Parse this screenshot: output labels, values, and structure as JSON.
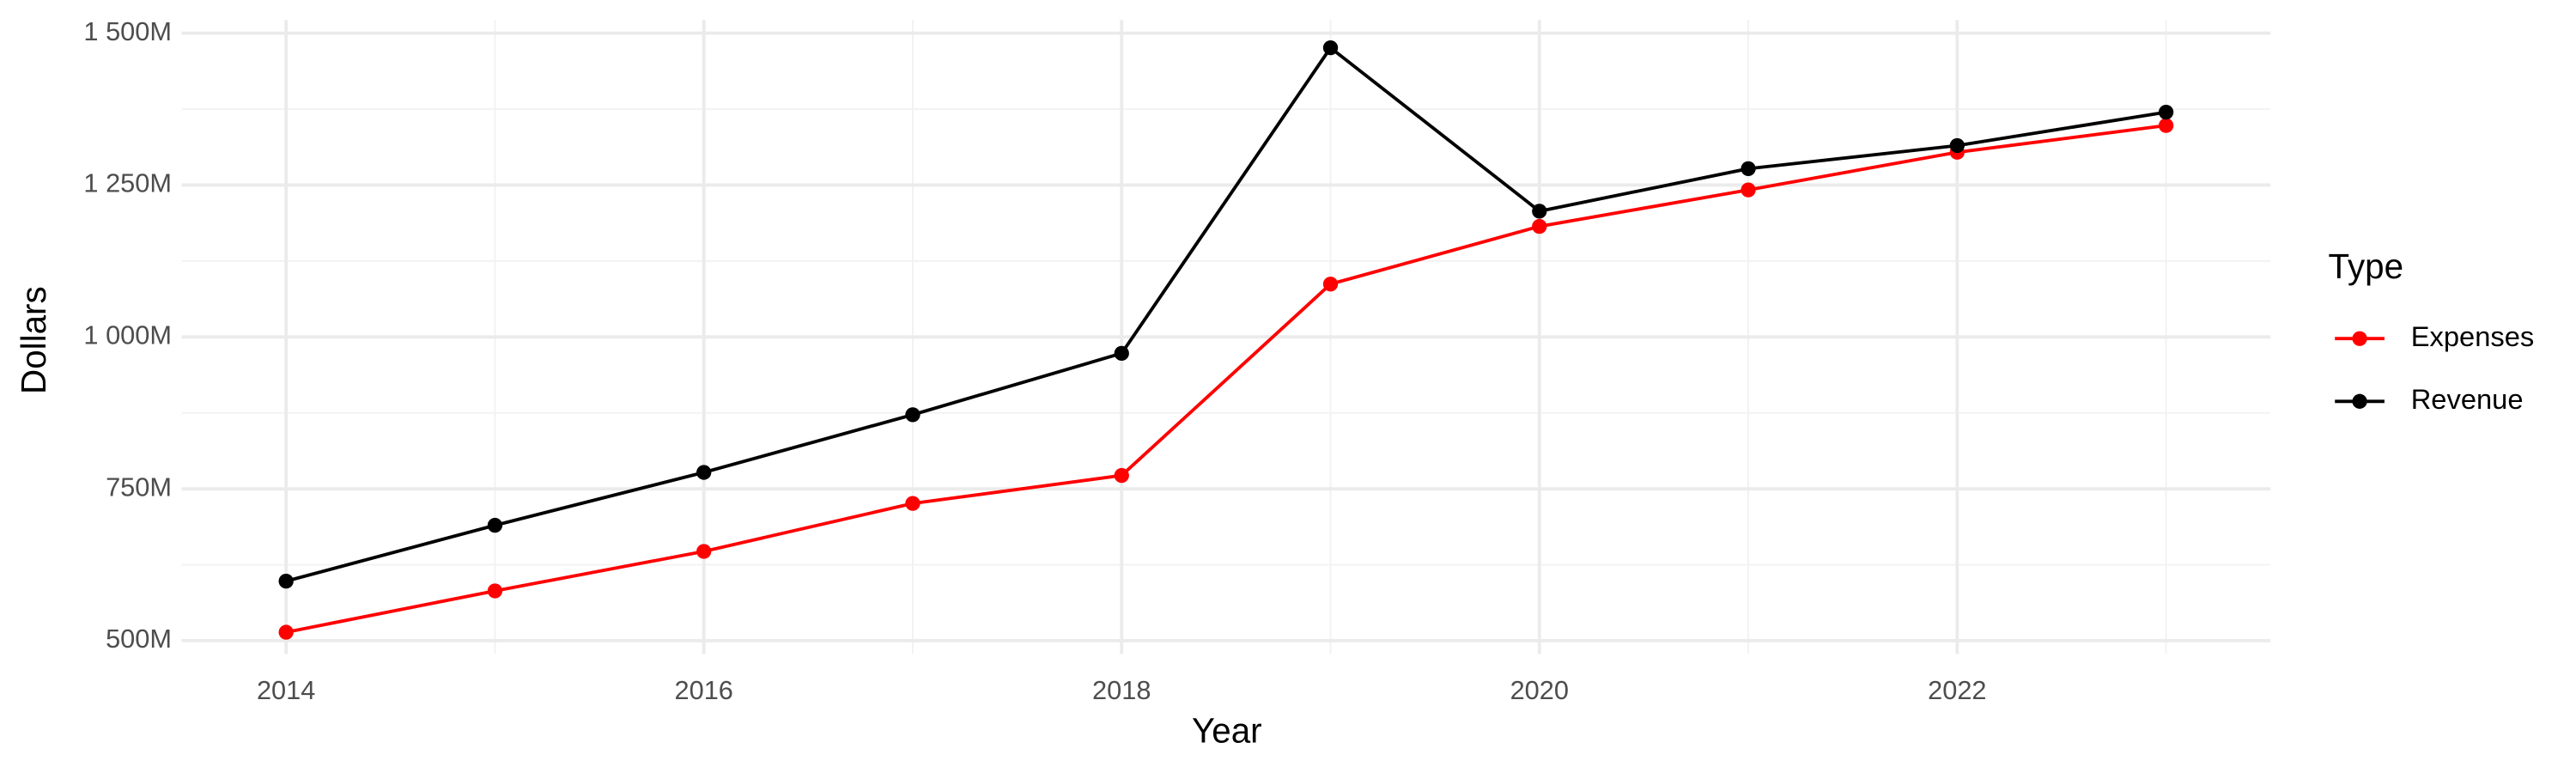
{
  "chart_data": {
    "type": "line",
    "x": [
      2014,
      2015,
      2016,
      2017,
      2018,
      2019,
      2020,
      2021,
      2022,
      2023
    ],
    "series": [
      {
        "name": "Expenses",
        "color": "#ff0000",
        "values": [
          514,
          582,
          647,
          726,
          772,
          1087,
          1182,
          1242,
          1304,
          1348
        ]
      },
      {
        "name": "Revenue",
        "color": "#000000",
        "values": [
          598,
          690,
          777,
          872,
          973,
          1476,
          1207,
          1277,
          1315,
          1370
        ]
      }
    ],
    "x_label": "Year",
    "y_label": "Dollars",
    "legend_title": "Type",
    "xlim": [
      2013.5,
      2023.5
    ],
    "xticks": [
      2014,
      2016,
      2018,
      2020,
      2022
    ],
    "ylim": [
      478,
      1522
    ],
    "yticks": [
      {
        "value": 500,
        "label": "500M"
      },
      {
        "value": 750,
        "label": "750M"
      },
      {
        "value": 1000,
        "label": "1 000M"
      },
      {
        "value": 1250,
        "label": "1 250M"
      },
      {
        "value": 1500,
        "label": "1 500M"
      }
    ],
    "grid": true,
    "legend_position": "right"
  }
}
